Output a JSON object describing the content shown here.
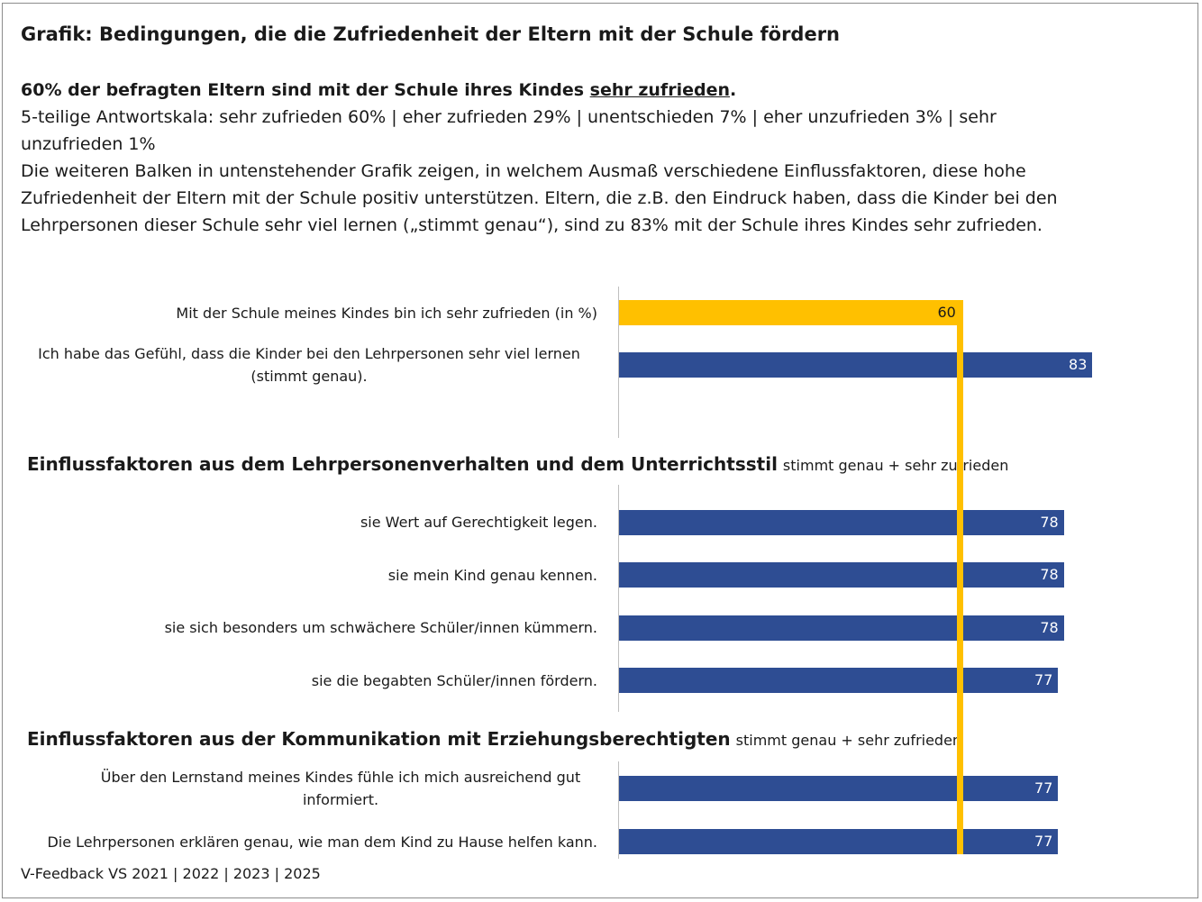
{
  "title": "Grafik: Bedingungen, die die Zufriedenheit der Eltern mit der Schule fördern",
  "intro": {
    "bold_prefix": "60% der befragten Eltern sind mit der Schule ihres Kindes ",
    "bold_underlined": "sehr zufrieden",
    "bold_suffix": ".",
    "scale": "5-teilige Antwortskala: sehr zufrieden 60% | eher zufrieden 29% | unentschieden 7% | eher unzufrieden 3% | sehr unzufrieden 1%",
    "explanation": "Die weiteren Balken in untenstehender Grafik zeigen, in welchem Ausmaß verschiedene Einflussfaktoren, diese hohe Zufriedenheit der Eltern mit der Schule positiv unterstützen. Eltern, die z.B. den Eindruck haben, dass die Kinder bei den Lehrpersonen dieser Schule sehr viel lernen („stimmt genau“), sind zu 83% mit der Schule ihres Kindes sehr zufrieden."
  },
  "sections": {
    "teacher": {
      "title": "Einflussfaktoren aus dem Lehrpersonenverhalten und dem Unterrichtsstil",
      "subtitle": "stimmt genau + sehr zufrieden"
    },
    "communication": {
      "title": "Einflussfaktoren aus der Kommunikation mit Erziehungsberechtigten",
      "subtitle": "stimmt genau + sehr zufrieden"
    }
  },
  "colors": {
    "reference": "#ffc000",
    "bar": "#2e4d93"
  },
  "chart_data": {
    "type": "bar",
    "orientation": "horizontal",
    "xlim": [
      0,
      100
    ],
    "reference_value": 60,
    "categories": [
      "Mit der Schule meines Kindes bin ich sehr zufrieden (in %)",
      "Ich habe das Gefühl, dass die Kinder bei den Lehrpersonen sehr viel lernen (stimmt genau).",
      "sie Wert auf Gerechtigkeit legen.",
      "sie mein Kind genau kennen.",
      "sie sich besonders um schwächere Schüler/innen kümmern.",
      "sie die begabten Schüler/innen fördern.",
      "Über den Lernstand meines Kindes fühle ich mich ausreichend gut informiert.",
      "Die Lehrpersonen erklären genau, wie man dem Kind zu Hause helfen kann."
    ],
    "values": [
      60,
      83,
      78,
      78,
      78,
      77,
      77,
      77
    ],
    "value_labels": [
      "60",
      "83",
      "78",
      "78",
      "78",
      "77",
      "77",
      "77"
    ]
  },
  "footer": "V-Feedback VS 2021 | 2022 | 2023 | 2025"
}
